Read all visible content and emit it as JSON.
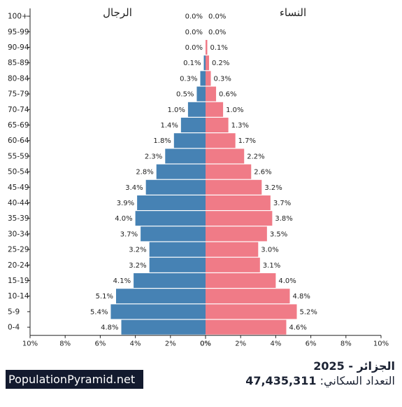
{
  "chart_data": {
    "type": "population-pyramid",
    "left_label": "الرجال",
    "right_label": "النساء",
    "age_groups": [
      "100+",
      "95-99",
      "90-94",
      "85-89",
      "80-84",
      "75-79",
      "70-74",
      "65-69",
      "60-64",
      "55-59",
      "50-54",
      "45-49",
      "40-44",
      "35-39",
      "30-34",
      "25-29",
      "20-24",
      "15-19",
      "10-14",
      "5-9",
      "0-4"
    ],
    "series": [
      {
        "name": "الرجال",
        "side": "left",
        "color": "#4682b4",
        "values": [
          0.0,
          0.0,
          0.0,
          0.1,
          0.3,
          0.5,
          1.0,
          1.4,
          1.8,
          2.3,
          2.8,
          3.4,
          3.9,
          4.0,
          3.7,
          3.2,
          3.2,
          4.1,
          5.1,
          5.4,
          4.8
        ]
      },
      {
        "name": "النساء",
        "side": "right",
        "color": "#f07b87",
        "values": [
          0.0,
          0.0,
          0.1,
          0.2,
          0.3,
          0.6,
          1.0,
          1.3,
          1.7,
          2.2,
          2.6,
          3.2,
          3.7,
          3.8,
          3.5,
          3.0,
          3.1,
          4.0,
          4.8,
          5.2,
          4.6
        ]
      }
    ],
    "value_labels": {
      "left": [
        "0.0%",
        "0.0%",
        "0.0%",
        "0.1%",
        "0.3%",
        "0.5%",
        "1.0%",
        "1.4%",
        "1.8%",
        "2.3%",
        "2.8%",
        "3.4%",
        "3.9%",
        "4.0%",
        "3.7%",
        "3.2%",
        "3.2%",
        "4.1%",
        "5.1%",
        "5.4%",
        "4.8%"
      ],
      "right": [
        "0.0%",
        "0.0%",
        "0.1%",
        "0.2%",
        "0.3%",
        "0.6%",
        "1.0%",
        "1.3%",
        "1.7%",
        "2.2%",
        "2.6%",
        "3.2%",
        "3.7%",
        "3.8%",
        "3.5%",
        "3.0%",
        "3.1%",
        "4.0%",
        "4.8%",
        "5.2%",
        "4.6%"
      ]
    },
    "x_ticks_left": [
      "10%",
      "8%",
      "6%",
      "4%",
      "2%",
      "0%"
    ],
    "x_ticks_right": [
      "0%",
      "2%",
      "4%",
      "6%",
      "8%",
      "10%"
    ],
    "xlim": [
      0,
      10
    ],
    "x_unit": "%"
  },
  "footer": {
    "brand": "PopulationPyramid.net",
    "title": "الجزائر - 2025",
    "population_label": "التعداد السكاني:",
    "population_value": "47,435,311"
  }
}
